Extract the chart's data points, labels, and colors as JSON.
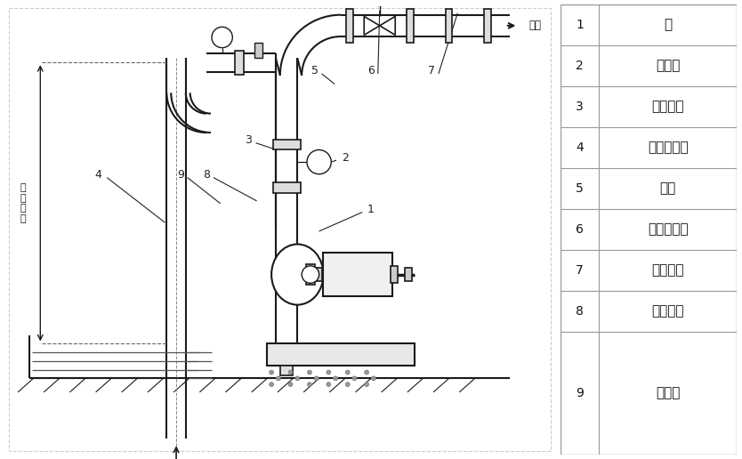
{
  "fig_width": 8.34,
  "fig_height": 5.16,
  "dpi": 100,
  "bg_color": "#ffffff",
  "diagram_bg": "#ffffff",
  "table_items": [
    [
      "1",
      "泵"
    ],
    [
      "2",
      "压力表"
    ],
    [
      "3",
      "出口垂管"
    ],
    [
      "4",
      "吸入硬喂管"
    ],
    [
      "5",
      "弯头"
    ],
    [
      "6",
      "流量控制阀"
    ],
    [
      "7",
      "出口管路"
    ],
    [
      "8",
      "加液螺塞"
    ],
    [
      "9",
      "真空表"
    ]
  ],
  "line_color": "#1a1a1a",
  "table_border_color": "#999999",
  "text_color": "#111111"
}
